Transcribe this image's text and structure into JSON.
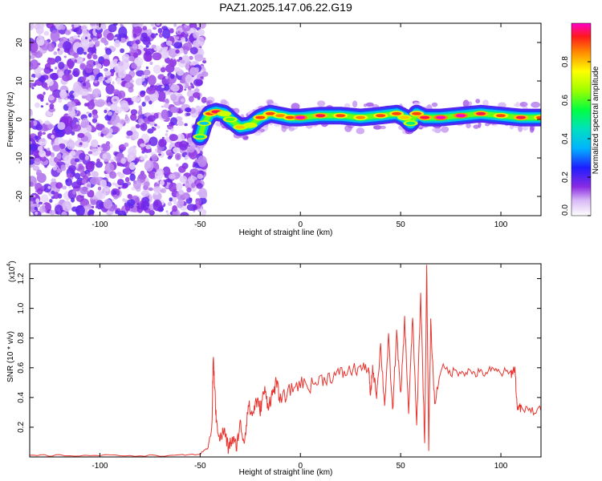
{
  "title": "PAZ1.2025.147.06.22.G19",
  "chart_data": [
    {
      "type": "heatmap",
      "xlabel": "Height of straight line (km)",
      "ylabel": "Frequency (Hz)",
      "xlim": [
        -135,
        120
      ],
      "ylim": [
        -25,
        25
      ],
      "x_ticks": [
        -100,
        -50,
        0,
        50,
        100
      ],
      "y_ticks": [
        -20,
        -10,
        0,
        10,
        20
      ],
      "colorbar": {
        "label": "Normalized spectral amplitude",
        "range": [
          0,
          1
        ],
        "ticks": [
          "0.0",
          "0.2",
          "0.4",
          "0.6",
          "0.8"
        ]
      },
      "noise_region_x": [
        -135,
        -50
      ],
      "signal_track": {
        "x": [
          -50,
          -48,
          -45,
          -42,
          -38,
          -35,
          -30,
          -25,
          -20,
          -15,
          -10,
          -5,
          0,
          10,
          20,
          30,
          40,
          48,
          52,
          55,
          58,
          62,
          70,
          80,
          90,
          100,
          110,
          120
        ],
        "frequency": [
          -4.5,
          -1,
          1.5,
          2,
          1.5,
          0,
          -2,
          -1.5,
          0.5,
          1.5,
          1,
          0.5,
          0.5,
          1,
          1,
          0.5,
          1,
          1.5,
          0.5,
          -1,
          1.5,
          0.5,
          0.5,
          1,
          1.5,
          1,
          0.5,
          0.5
        ],
        "peak_amplitude": [
          0.5,
          0.4,
          0.9,
          0.95,
          0.7,
          0.6,
          0.8,
          0.7,
          0.9,
          0.9,
          0.85,
          0.9,
          1.0,
          0.95,
          0.9,
          0.85,
          0.9,
          0.9,
          0.8,
          0.5,
          0.9,
          0.95,
          1.0,
          1.0,
          0.95,
          0.9,
          0.95,
          0.9
        ]
      }
    },
    {
      "type": "line",
      "xlabel": "Height of straight line (km)",
      "ylabel": "SNR (10 * v/v)",
      "y_multiplier": "(x10",
      "y_multiplier_exp": "4",
      "y_multiplier_close": ")",
      "xlim": [
        -135,
        120
      ],
      "ylim": [
        0,
        1.3
      ],
      "x_ticks": [
        -100,
        -50,
        0,
        50,
        100
      ],
      "y_ticks": [
        "0.2",
        "0.4",
        "0.6",
        "0.8",
        "1.0",
        "1.2"
      ],
      "series": [
        {
          "color": "#e8342e",
          "x": [
            -135,
            -120,
            -100,
            -80,
            -60,
            -50,
            -46,
            -44,
            -43.5,
            -42.5,
            -42,
            -40,
            -38,
            -36,
            -34,
            -32,
            -30,
            -28,
            -26,
            -24,
            -22,
            -20,
            -18,
            -16,
            -14,
            -12,
            -10,
            -5,
            0,
            5,
            10,
            15,
            20,
            25,
            30,
            34,
            35,
            36,
            38,
            40,
            42,
            44,
            46,
            48,
            50,
            52,
            54,
            56,
            58,
            60,
            62,
            63,
            64,
            65,
            67,
            70,
            75,
            80,
            85,
            90,
            95,
            100,
            105,
            107,
            108,
            110,
            115,
            120
          ],
          "y": [
            0.01,
            0.01,
            0.01,
            0.01,
            0.01,
            0.02,
            0.06,
            0.25,
            0.68,
            0.4,
            0.25,
            0.12,
            0.18,
            0.06,
            0.12,
            0.07,
            0.22,
            0.1,
            0.35,
            0.28,
            0.38,
            0.32,
            0.45,
            0.35,
            0.42,
            0.5,
            0.38,
            0.45,
            0.5,
            0.48,
            0.52,
            0.54,
            0.56,
            0.58,
            0.6,
            0.6,
            0.4,
            0.6,
            0.42,
            0.75,
            0.35,
            0.8,
            0.3,
            0.85,
            0.4,
            0.92,
            0.3,
            0.95,
            0.2,
            1.1,
            0.08,
            1.3,
            0.05,
            0.9,
            0.35,
            0.6,
            0.57,
            0.58,
            0.57,
            0.56,
            0.58,
            0.57,
            0.56,
            0.6,
            0.35,
            0.32,
            0.31,
            0.31
          ]
        }
      ]
    }
  ]
}
